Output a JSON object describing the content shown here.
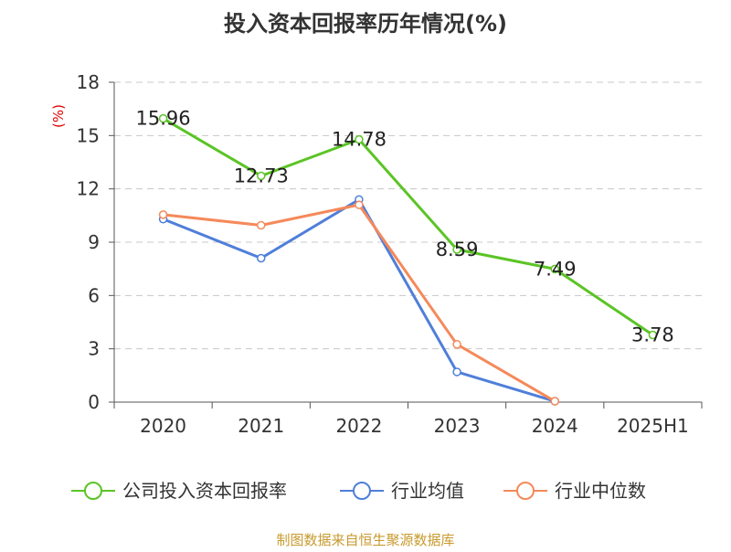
{
  "chart_data": {
    "type": "line",
    "title": "投入资本回报率历年情况(%)",
    "ylabel": "(%)",
    "xlabel": "",
    "categories": [
      "2020",
      "2021",
      "2022",
      "2023",
      "2024",
      "2025H1"
    ],
    "ylim": [
      0,
      18
    ],
    "yticks": [
      0,
      3,
      6,
      9,
      12,
      15,
      18
    ],
    "grid": true,
    "legend_position": "bottom",
    "series": [
      {
        "name": "公司投入资本回报率",
        "color": "#5bc425",
        "values": [
          15.96,
          12.73,
          14.78,
          8.59,
          7.49,
          3.78
        ],
        "data_labels": [
          "15.96",
          "12.73",
          "14.78",
          "8.59",
          "7.49",
          "3.78"
        ]
      },
      {
        "name": "行业均值",
        "color": "#4f7fd9",
        "values": [
          10.3,
          8.1,
          11.4,
          1.7,
          0.05,
          null
        ]
      },
      {
        "name": "行业中位数",
        "color": "#f5895a",
        "values": [
          10.55,
          9.95,
          11.1,
          3.25,
          0.05,
          null
        ]
      }
    ]
  },
  "footer": {
    "source": "制图数据来自恒生聚源数据库"
  }
}
